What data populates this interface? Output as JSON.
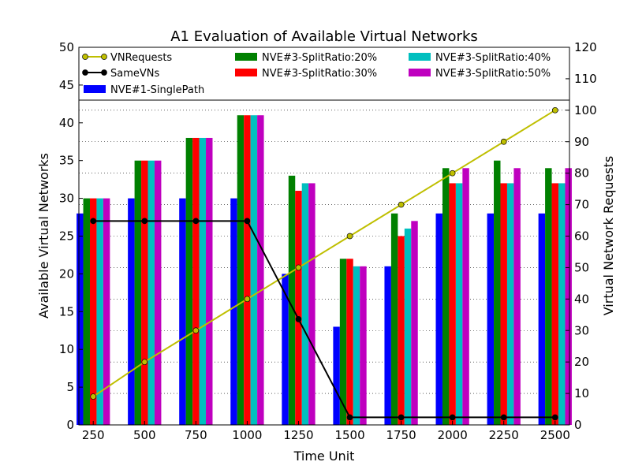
{
  "chart_data": {
    "type": "bar",
    "title": "A1 Evaluation of Available Virtual Networks",
    "xlabel": "Time Unit",
    "ylabel": "Available Virtual Networks",
    "y2label": "Virtual Network Requests",
    "categories": [
      "250",
      "500",
      "750",
      "1000",
      "1250",
      "1500",
      "1750",
      "2000",
      "2250",
      "2500"
    ],
    "ylim": [
      0,
      50
    ],
    "y2lim": [
      0,
      120
    ],
    "yticks": [
      0,
      5,
      10,
      15,
      20,
      25,
      30,
      35,
      40,
      45,
      50
    ],
    "y2ticks": [
      0,
      10,
      20,
      30,
      40,
      50,
      60,
      70,
      80,
      90,
      100,
      110,
      120
    ],
    "grid": "dotted horizontal (right axis)",
    "legend_placement": "top, 3 columns",
    "bar_series": [
      {
        "name": "NVE#1-SinglePath",
        "color": "#0000ff",
        "values": [
          28,
          30,
          30,
          30,
          20,
          13,
          21,
          28,
          28,
          28
        ]
      },
      {
        "name": "NVE#3-SplitRatio:20%",
        "color": "#008000",
        "values": [
          30,
          35,
          38,
          41,
          33,
          22,
          28,
          34,
          35,
          34
        ]
      },
      {
        "name": "NVE#3-SplitRatio:30%",
        "color": "#ff0000",
        "values": [
          30,
          35,
          38,
          41,
          31,
          22,
          25,
          32,
          32,
          32
        ]
      },
      {
        "name": "NVE#3-SplitRatio:40%",
        "color": "#00bfbf",
        "values": [
          30,
          35,
          38,
          41,
          32,
          21,
          26,
          32,
          32,
          32
        ]
      },
      {
        "name": "NVE#3-SplitRatio:50%",
        "color": "#bf00bf",
        "values": [
          30,
          35,
          38,
          41,
          32,
          21,
          27,
          34,
          34,
          34
        ]
      }
    ],
    "line_series": [
      {
        "name": "VNRequests",
        "axis": "right",
        "color": "#bfbf00",
        "marker_color": "#bfbf00",
        "values": [
          9,
          20,
          30,
          40,
          50,
          60,
          70,
          80,
          90,
          100
        ]
      },
      {
        "name": "SameVNs",
        "axis": "left",
        "color": "#000000",
        "marker_color": "#000000",
        "values": [
          27,
          27,
          27,
          27,
          14,
          1,
          1,
          1,
          1,
          1
        ]
      }
    ]
  }
}
